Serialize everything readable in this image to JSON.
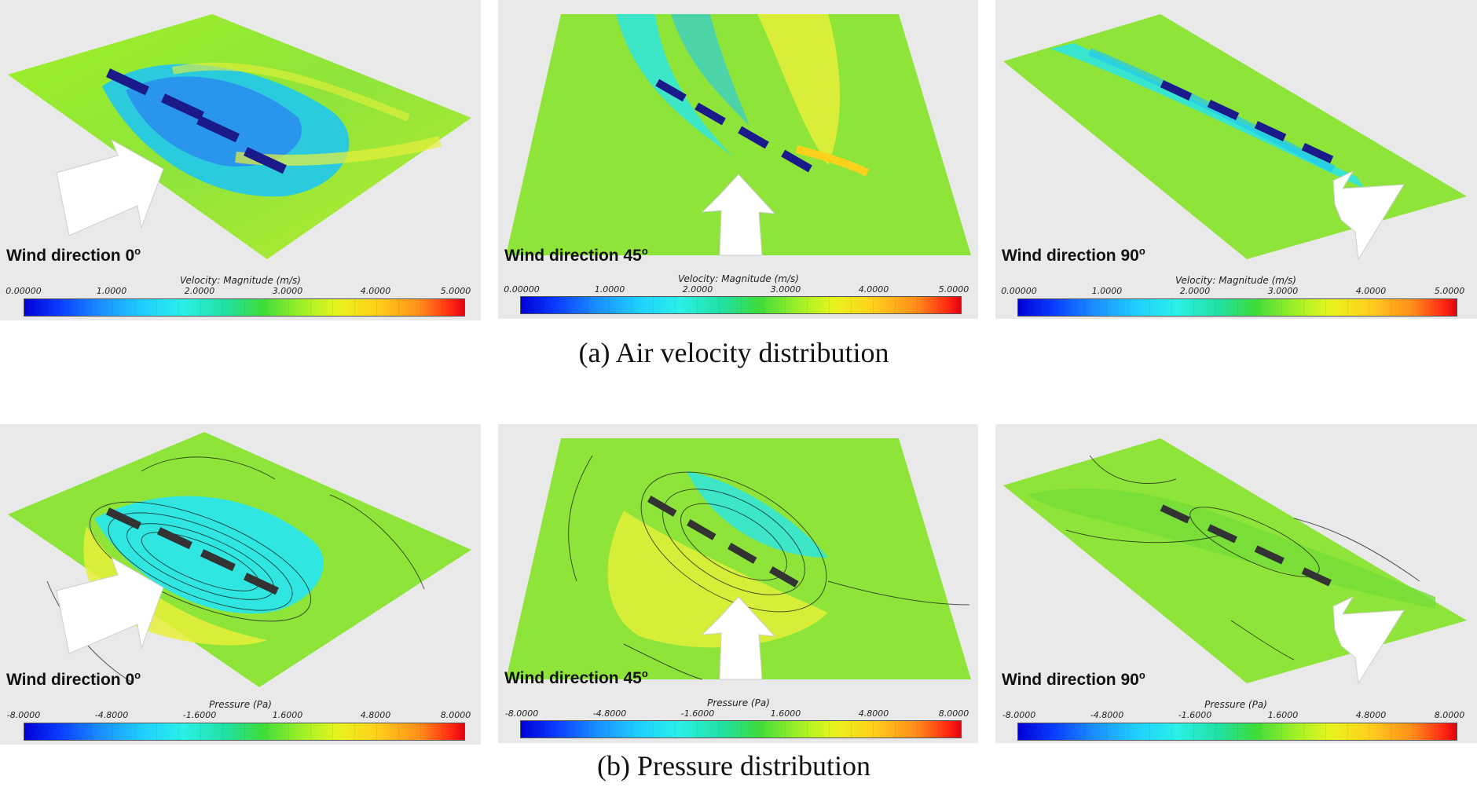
{
  "velocity_panels": [
    {
      "label": "Wind direction 0",
      "sup": "o",
      "colorbar_title": "Velocity: Magnitude (m/s)",
      "ticks": [
        "0.00000",
        "1.0000",
        "2.0000",
        "3.0000",
        "4.0000",
        "5.0000"
      ]
    },
    {
      "label": "Wind direction 45",
      "sup": "o",
      "colorbar_title": "Velocity: Magnitude (m/s)",
      "ticks": [
        "0.00000",
        "1.0000",
        "2.0000",
        "3.0000",
        "4.0000",
        "5.0000"
      ]
    },
    {
      "label": "Wind direction 90",
      "sup": "o",
      "colorbar_title": "Velocity: Magnitude (m/s)",
      "ticks": [
        "0.00000",
        "1.0000",
        "2.0000",
        "3.0000",
        "4.0000",
        "5.0000"
      ]
    }
  ],
  "pressure_panels": [
    {
      "label": "Wind direction 0",
      "sup": "o",
      "colorbar_title": "Pressure (Pa)",
      "ticks": [
        "-8.0000",
        "-4.8000",
        "-1.6000",
        "1.6000",
        "4.8000",
        "8.0000"
      ]
    },
    {
      "label": "Wind direction 45",
      "sup": "o",
      "colorbar_title": "Pressure (Pa)",
      "ticks": [
        "-8.0000",
        "-4.8000",
        "-1.6000",
        "1.6000",
        "4.8000",
        "8.0000"
      ]
    },
    {
      "label": "Wind direction 90",
      "sup": "o",
      "colorbar_title": "Pressure (Pa)",
      "ticks": [
        "-8.0000",
        "-4.8000",
        "-1.6000",
        "1.6000",
        "4.8000",
        "8.0000"
      ]
    }
  ],
  "captions": {
    "velocity": "(a) Air velocity distribution",
    "pressure": "(b) Pressure distribution"
  },
  "colors": {
    "panel_bg": "#e9e9e9",
    "field_green": "#8fe43a",
    "field_cyan": "#2fe6e0",
    "field_blue": "#2a8cf0",
    "field_yellow": "#e8f03a",
    "building": "#1a1a8a",
    "arrow": "#ffffff"
  }
}
